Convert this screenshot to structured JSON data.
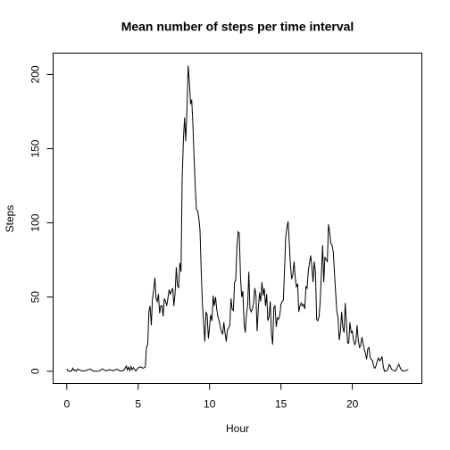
{
  "chart_data": {
    "type": "line",
    "title": "Mean number of steps per time interval",
    "x_label": "Hour",
    "y_label": "Steps",
    "color": "#000000",
    "xlim": [
      -0.957,
      24.87
    ],
    "ylim": [
      -8.25,
      214.4
    ],
    "xticks": [
      0,
      5,
      10,
      15,
      20
    ],
    "yticks": [
      0,
      50,
      100,
      150,
      200
    ],
    "x": [
      0,
      0.08,
      0.17,
      0.25,
      0.33,
      0.42,
      0.5,
      0.58,
      0.67,
      0.75,
      0.83,
      1,
      1.17,
      1.33,
      1.5,
      1.67,
      1.83,
      2,
      2.25,
      2.5,
      2.75,
      3,
      3.25,
      3.5,
      3.75,
      4,
      4.17,
      4.25,
      4.33,
      4.42,
      4.5,
      4.58,
      4.67,
      4.83,
      5,
      5.17,
      5.33,
      5.5,
      5.58,
      5.67,
      5.75,
      5.83,
      5.92,
      6,
      6.08,
      6.17,
      6.25,
      6.33,
      6.42,
      6.5,
      6.58,
      6.67,
      6.75,
      6.83,
      6.92,
      7,
      7.08,
      7.17,
      7.25,
      7.33,
      7.42,
      7.5,
      7.58,
      7.67,
      7.75,
      7.83,
      7.92,
      8,
      8.08,
      8.17,
      8.25,
      8.33,
      8.42,
      8.5,
      8.58,
      8.67,
      8.75,
      8.83,
      8.92,
      9,
      9.08,
      9.17,
      9.25,
      9.33,
      9.42,
      9.5,
      9.58,
      9.67,
      9.75,
      9.83,
      9.92,
      10,
      10.08,
      10.17,
      10.25,
      10.33,
      10.42,
      10.5,
      10.58,
      10.67,
      10.75,
      10.83,
      10.92,
      11,
      11.08,
      11.17,
      11.25,
      11.33,
      11.42,
      11.5,
      11.58,
      11.67,
      11.75,
      11.83,
      11.92,
      12,
      12.08,
      12.17,
      12.25,
      12.33,
      12.42,
      12.5,
      12.58,
      12.67,
      12.75,
      12.83,
      12.92,
      13,
      13.08,
      13.17,
      13.25,
      13.33,
      13.42,
      13.5,
      13.58,
      13.67,
      13.75,
      13.83,
      13.92,
      14,
      14.08,
      14.17,
      14.25,
      14.33,
      14.42,
      14.5,
      14.58,
      14.67,
      14.75,
      14.83,
      14.92,
      15,
      15.08,
      15.17,
      15.25,
      15.33,
      15.42,
      15.5,
      15.58,
      15.67,
      15.75,
      15.83,
      15.92,
      16,
      16.08,
      16.17,
      16.25,
      16.33,
      16.42,
      16.5,
      16.58,
      16.67,
      16.75,
      16.83,
      16.92,
      17,
      17.08,
      17.17,
      17.25,
      17.33,
      17.42,
      17.5,
      17.58,
      17.67,
      17.75,
      17.83,
      17.92,
      18,
      18.08,
      18.17,
      18.25,
      18.33,
      18.42,
      18.5,
      18.58,
      18.67,
      18.75,
      18.83,
      18.92,
      19,
      19.08,
      19.17,
      19.25,
      19.33,
      19.42,
      19.5,
      19.58,
      19.67,
      19.75,
      19.83,
      19.92,
      20,
      20.08,
      20.17,
      20.25,
      20.33,
      20.42,
      20.5,
      20.58,
      20.67,
      20.75,
      20.83,
      20.92,
      21,
      21.08,
      21.17,
      21.25,
      21.33,
      21.42,
      21.5,
      21.58,
      21.67,
      21.75,
      21.83,
      21.92,
      22,
      22.08,
      22.17,
      22.25,
      22.42,
      22.5,
      22.58,
      22.67,
      22.75,
      22.83,
      23,
      23.08,
      23.17,
      23.25,
      23.33,
      23.42,
      23.5,
      23.58,
      23.67,
      23.92
    ],
    "values": [
      1.7,
      0.3,
      0.1,
      0.2,
      0.1,
      2.1,
      0.5,
      0.9,
      0,
      1.5,
      1.3,
      0.3,
      0.2,
      0.4,
      1.1,
      1.5,
      0.2,
      0,
      0.1,
      1.6,
      0.2,
      1.1,
      0.3,
      1.4,
      0.1,
      0.6,
      3.5,
      0.8,
      2.8,
      0.5,
      3.2,
      1,
      2.5,
      0.2,
      2.3,
      3,
      2,
      2.8,
      16,
      18,
      40,
      44,
      31,
      49,
      54,
      63,
      49,
      47,
      52,
      39,
      44,
      44,
      37,
      49,
      47,
      44,
      49,
      55,
      52,
      54,
      56,
      44,
      52,
      70,
      58,
      56,
      73,
      67,
      129,
      157,
      171,
      155,
      177,
      206,
      196,
      180,
      183,
      167,
      143,
      124,
      109,
      108,
      103,
      95,
      66,
      45,
      33,
      20,
      40,
      38,
      22,
      30,
      38,
      34,
      51,
      44,
      50,
      42,
      37,
      34,
      30,
      27,
      25,
      33,
      26,
      20,
      28,
      29,
      31,
      49,
      42,
      41,
      60,
      61,
      84,
      94,
      93,
      63,
      50,
      54,
      32,
      26,
      38,
      45,
      67,
      42,
      40,
      42,
      46,
      56,
      51,
      27,
      43,
      53,
      47,
      60,
      51,
      56,
      44,
      52,
      34,
      37,
      47,
      26,
      18,
      43,
      44,
      30,
      36,
      35,
      38,
      45,
      47,
      48,
      68,
      90,
      97,
      101,
      87,
      71,
      62,
      65,
      74,
      63,
      57,
      59,
      40,
      44,
      46,
      44,
      45,
      42,
      57,
      56,
      68,
      73,
      78,
      70,
      60,
      74,
      66,
      35,
      34,
      37,
      47,
      65,
      85,
      60,
      77,
      75,
      74,
      99,
      93,
      86,
      85,
      80,
      66,
      53,
      40,
      36,
      21,
      27,
      40,
      30,
      26,
      46,
      33,
      19,
      19,
      33,
      26,
      27,
      21,
      18,
      20,
      31,
      21,
      16,
      17,
      23,
      19,
      15,
      12,
      8,
      15,
      16,
      9,
      8,
      7,
      3,
      2,
      4,
      7,
      9,
      7,
      8,
      10,
      3,
      0,
      0.3,
      1.6,
      4.6,
      3.3,
      1.3,
      0.8,
      0,
      1,
      3,
      4.7,
      3,
      1,
      0.4,
      0.1,
      0.3,
      1.1
    ]
  }
}
